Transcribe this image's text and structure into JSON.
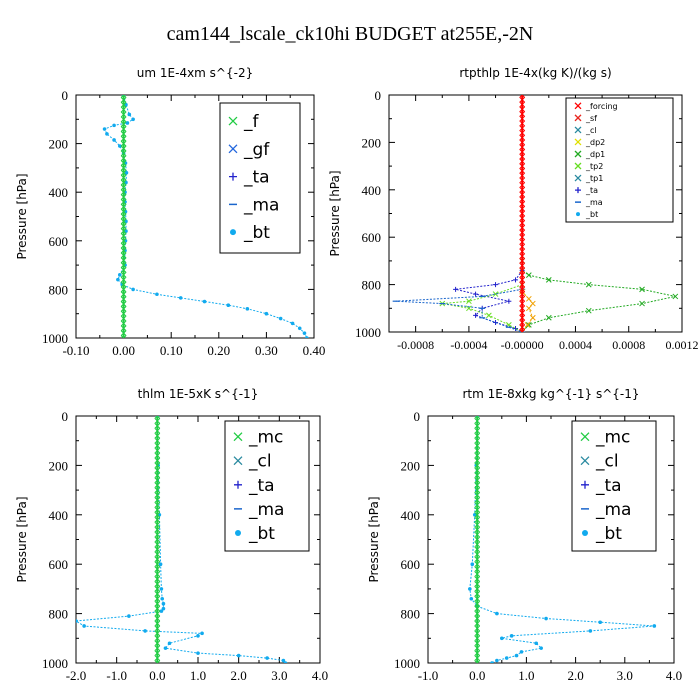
{
  "figure_title": "cam144_lscale_ck10hi  BUDGET at255E,-2N",
  "colors": {
    "forcing": "#ff0000",
    "sf": "#e8261e",
    "cl": "#f0a000",
    "dp2": "#e0e000",
    "dp1": "#22aa22",
    "tp2": "#66dd22",
    "tp1": "#2a8aa0",
    "ta": "#2222cc",
    "ma": "#1a66cc",
    "bt": "#11aaee",
    "f": "#22cc44",
    "gf": "#2266dd",
    "mc": "#22cc44"
  },
  "chart_data": [
    {
      "type": "line",
      "title": "um   1E-4xm s^{-2}",
      "ylabel": "Pressure [hPa]",
      "xlim": [
        -0.1,
        0.4
      ],
      "ylim": [
        1000,
        0
      ],
      "y_inverted": true,
      "xticks": [
        "-0.10",
        "0.00",
        "0.10",
        "0.20",
        "0.30",
        "0.40"
      ],
      "xtick_values": [
        -0.1,
        0.0,
        0.1,
        0.2,
        0.3,
        0.4
      ],
      "yticks": [
        "0",
        "200",
        "400",
        "600",
        "800",
        "1000"
      ],
      "ytick_values": [
        0,
        200,
        400,
        600,
        800,
        1000
      ],
      "legend": [
        "_f",
        "_gf",
        "_ta",
        "_ma",
        "_bt"
      ],
      "legend_position": "top-right",
      "series": [
        {
          "name": "_f",
          "color": "#22cc44",
          "marker": "x",
          "x": [
            0,
            0,
            0,
            0,
            0,
            0,
            0,
            0,
            0,
            0,
            0,
            0,
            0,
            0,
            0,
            0,
            0,
            0,
            0,
            0,
            0,
            0,
            0,
            0,
            0,
            0,
            0,
            0,
            0,
            0,
            0,
            0,
            0,
            0,
            0,
            0,
            0,
            0,
            0,
            0,
            0,
            0,
            0,
            0,
            0,
            0,
            0,
            0,
            0,
            0,
            0
          ],
          "y": [
            0,
            20,
            40,
            60,
            80,
            100,
            120,
            140,
            160,
            180,
            200,
            220,
            240,
            260,
            280,
            300,
            320,
            340,
            360,
            380,
            400,
            420,
            440,
            460,
            480,
            500,
            520,
            540,
            560,
            580,
            600,
            620,
            640,
            660,
            680,
            700,
            720,
            740,
            760,
            780,
            800,
            820,
            840,
            860,
            880,
            900,
            920,
            940,
            960,
            980,
            1000
          ]
        },
        {
          "name": "_bt",
          "color": "#11aaee",
          "marker": "dot",
          "x": [
            0.0,
            0.005,
            0.012,
            0.02,
            0.008,
            -0.02,
            -0.04,
            -0.035,
            -0.02,
            -0.008,
            0.0,
            0.004,
            0.006,
            0.005,
            0.003,
            0.003,
            0.004,
            0.005,
            0.005,
            0.004,
            0.003,
            0.003,
            -0.008,
            -0.012,
            -0.003,
            0.02,
            0.07,
            0.12,
            0.17,
            0.22,
            0.26,
            0.3,
            0.33,
            0.355,
            0.37,
            0.38,
            0.385
          ],
          "y": [
            0,
            40,
            80,
            100,
            115,
            125,
            140,
            160,
            185,
            210,
            240,
            280,
            320,
            360,
            400,
            440,
            480,
            520,
            560,
            600,
            640,
            700,
            740,
            760,
            780,
            800,
            820,
            835,
            850,
            865,
            880,
            900,
            920,
            940,
            960,
            980,
            1000
          ]
        }
      ]
    },
    {
      "type": "line",
      "title": "rtpthlp   1E-4x(kg K)/(kg s)",
      "ylabel": "Pressure [hPa]",
      "xlim": [
        -0.001,
        0.0012
      ],
      "ylim": [
        1000,
        0
      ],
      "y_inverted": true,
      "xticks": [
        "-0.0008",
        "-0.0004",
        "-0.00000",
        "0.0004",
        "0.0008",
        "0.0012"
      ],
      "xtick_values": [
        -0.0008,
        -0.0004,
        0.0,
        0.0004,
        0.0008,
        0.0012
      ],
      "yticks": [
        "0",
        "200",
        "400",
        "600",
        "800",
        "1000"
      ],
      "ytick_values": [
        0,
        200,
        400,
        600,
        800,
        1000
      ],
      "legend": [
        "_forcing",
        "_sf",
        "_cl",
        "_dp2",
        "_dp1",
        "_tp2",
        "_tp1",
        "_ta",
        "_ma",
        "_bt"
      ],
      "legend_position": "top-right",
      "series": [
        {
          "name": "_forcing",
          "color": "#ff0000",
          "marker": "x",
          "x": [
            0,
            0,
            0,
            0,
            0,
            0,
            0,
            0,
            0,
            0,
            0,
            0,
            0,
            0,
            0,
            0,
            0,
            0,
            0,
            0,
            0,
            0,
            0,
            0,
            0,
            0,
            0,
            0,
            0,
            0,
            0,
            0,
            0,
            0,
            0,
            0,
            0,
            0,
            0,
            0,
            0,
            0,
            0,
            0,
            0,
            0,
            0,
            0,
            0,
            0,
            0
          ],
          "y": [
            0,
            20,
            40,
            60,
            80,
            100,
            120,
            140,
            160,
            180,
            200,
            220,
            240,
            260,
            280,
            300,
            320,
            340,
            360,
            380,
            400,
            420,
            440,
            460,
            480,
            500,
            520,
            540,
            560,
            580,
            600,
            620,
            640,
            660,
            680,
            700,
            720,
            740,
            760,
            780,
            800,
            820,
            840,
            860,
            880,
            900,
            920,
            940,
            960,
            980,
            1000
          ]
        },
        {
          "name": "_dp1",
          "color": "#22aa22",
          "marker": "x",
          "x": [
            0,
            0,
            5e-05,
            0.0002,
            0.0005,
            0.0009,
            0.00115,
            0.0009,
            0.0005,
            0.0002,
            5e-05,
            0
          ],
          "y": [
            700,
            740,
            760,
            780,
            800,
            820,
            850,
            880,
            910,
            940,
            970,
            1000
          ]
        },
        {
          "name": "_ta",
          "color": "#2222cc",
          "marker": "plus",
          "x": [
            0,
            -5e-05,
            -0.0002,
            -0.0005,
            -0.00035,
            -0.0001,
            -0.0003,
            -0.00035,
            -0.0002,
            -5e-05,
            0
          ],
          "y": [
            740,
            780,
            800,
            820,
            840,
            870,
            900,
            930,
            960,
            985,
            1000
          ]
        },
        {
          "name": "_tp2",
          "color": "#66dd22",
          "marker": "x",
          "x": [
            0,
            -0.0002,
            -0.0004,
            -0.0006,
            -0.0004,
            -0.00025,
            -0.0001,
            0
          ],
          "y": [
            800,
            840,
            870,
            880,
            900,
            930,
            970,
            1000
          ]
        },
        {
          "name": "_ma",
          "color": "#1a66cc",
          "marker": "dash",
          "x": [
            0,
            -0.0003,
            -0.00095,
            -0.0006,
            -0.0003,
            -0.0003,
            -0.0001,
            0
          ],
          "y": [
            820,
            850,
            870,
            880,
            900,
            940,
            980,
            1000
          ]
        },
        {
          "name": "_cl",
          "color": "#f0a000",
          "marker": "x",
          "x": [
            0,
            5e-05,
            8e-05,
            5e-05,
            8e-05,
            4e-05,
            0
          ],
          "y": [
            830,
            860,
            880,
            900,
            940,
            970,
            1000
          ]
        }
      ]
    },
    {
      "type": "line",
      "title": "thlm   1E-5xK s^{-1}",
      "ylabel": "Pressure [hPa]",
      "xlim": [
        -2.0,
        4.0
      ],
      "ylim": [
        1000,
        0
      ],
      "y_inverted": true,
      "xticks": [
        "-2.0",
        "-1.0",
        "0.0",
        "1.0",
        "2.0",
        "3.0",
        "4.0"
      ],
      "xtick_values": [
        -2,
        -1,
        0,
        1,
        2,
        3,
        4
      ],
      "yticks": [
        "0",
        "200",
        "400",
        "600",
        "800",
        "1000"
      ],
      "ytick_values": [
        0,
        200,
        400,
        600,
        800,
        1000
      ],
      "legend": [
        "_mc",
        "_cl",
        "_ta",
        "_ma",
        "_bt"
      ],
      "legend_position": "top-right",
      "series": [
        {
          "name": "_mc",
          "color": "#22cc44",
          "marker": "x",
          "x": [
            0,
            0,
            0,
            0,
            0,
            0,
            0,
            0,
            0,
            0,
            0,
            0,
            0,
            0,
            0,
            0,
            0,
            0,
            0,
            0,
            0,
            0,
            0,
            0,
            0,
            0,
            0,
            0,
            0,
            0,
            0,
            0,
            0,
            0,
            0,
            0,
            0,
            0,
            0,
            0,
            0,
            0,
            0,
            0,
            0,
            0,
            0,
            0,
            0,
            0,
            0
          ],
          "y": [
            0,
            20,
            40,
            60,
            80,
            100,
            120,
            140,
            160,
            180,
            200,
            220,
            240,
            260,
            280,
            300,
            320,
            340,
            360,
            380,
            400,
            420,
            440,
            460,
            480,
            500,
            520,
            540,
            560,
            580,
            600,
            620,
            640,
            660,
            680,
            700,
            720,
            740,
            760,
            780,
            800,
            820,
            840,
            860,
            880,
            900,
            920,
            940,
            960,
            980,
            1000
          ]
        },
        {
          "name": "_bt",
          "color": "#11aaee",
          "marker": "dot",
          "x": [
            0.0,
            0.02,
            0.05,
            0.08,
            0.1,
            0.12,
            0.15,
            0.15,
            0.1,
            -0.7,
            -2.0,
            -1.8,
            -0.3,
            1.1,
            1.0,
            0.3,
            0.2,
            1.0,
            2.0,
            2.7,
            3.1,
            3.15
          ],
          "y": [
            0,
            200,
            400,
            600,
            700,
            740,
            760,
            780,
            790,
            810,
            830,
            850,
            870,
            880,
            890,
            920,
            940,
            960,
            970,
            980,
            990,
            1000
          ]
        }
      ]
    },
    {
      "type": "line",
      "title": "rtm   1E-8xkg kg^{-1} s^{-1}",
      "ylabel": "Pressure [hPa]",
      "xlim": [
        -1.0,
        4.0
      ],
      "ylim": [
        1000,
        0
      ],
      "y_inverted": true,
      "xticks": [
        "-1.0",
        "0.0",
        "1.0",
        "2.0",
        "3.0",
        "4.0"
      ],
      "xtick_values": [
        -1,
        0,
        1,
        2,
        3,
        4
      ],
      "yticks": [
        "0",
        "200",
        "400",
        "600",
        "800",
        "1000"
      ],
      "ytick_values": [
        0,
        200,
        400,
        600,
        800,
        1000
      ],
      "legend": [
        "_mc",
        "_cl",
        "_ta",
        "_ma",
        "_bt"
      ],
      "legend_position": "top-right",
      "series": [
        {
          "name": "_mc",
          "color": "#22cc44",
          "marker": "x",
          "x": [
            0,
            0,
            0,
            0,
            0,
            0,
            0,
            0,
            0,
            0,
            0,
            0,
            0,
            0,
            0,
            0,
            0,
            0,
            0,
            0,
            0,
            0,
            0,
            0,
            0,
            0,
            0,
            0,
            0,
            0,
            0,
            0,
            0,
            0,
            0,
            0,
            0,
            0,
            0,
            0,
            0,
            0,
            0,
            0,
            0,
            0,
            0,
            0,
            0,
            0,
            0
          ],
          "y": [
            0,
            20,
            40,
            60,
            80,
            100,
            120,
            140,
            160,
            180,
            200,
            220,
            240,
            260,
            280,
            300,
            320,
            340,
            360,
            380,
            400,
            420,
            440,
            460,
            480,
            500,
            520,
            540,
            560,
            580,
            600,
            620,
            640,
            660,
            680,
            700,
            720,
            740,
            760,
            780,
            800,
            820,
            840,
            860,
            880,
            900,
            920,
            940,
            960,
            980,
            1000
          ]
        },
        {
          "name": "_bt",
          "color": "#11aaee",
          "marker": "dot",
          "x": [
            0.0,
            -0.02,
            -0.05,
            -0.1,
            -0.15,
            -0.12,
            0.0,
            0.4,
            1.4,
            2.5,
            3.6,
            2.3,
            0.7,
            0.5,
            1.2,
            1.3,
            0.9,
            0.8,
            0.6,
            0.4,
            0.3
          ],
          "y": [
            0,
            200,
            400,
            600,
            700,
            740,
            770,
            800,
            820,
            835,
            850,
            870,
            890,
            900,
            920,
            940,
            955,
            970,
            980,
            990,
            1000
          ]
        }
      ]
    }
  ]
}
